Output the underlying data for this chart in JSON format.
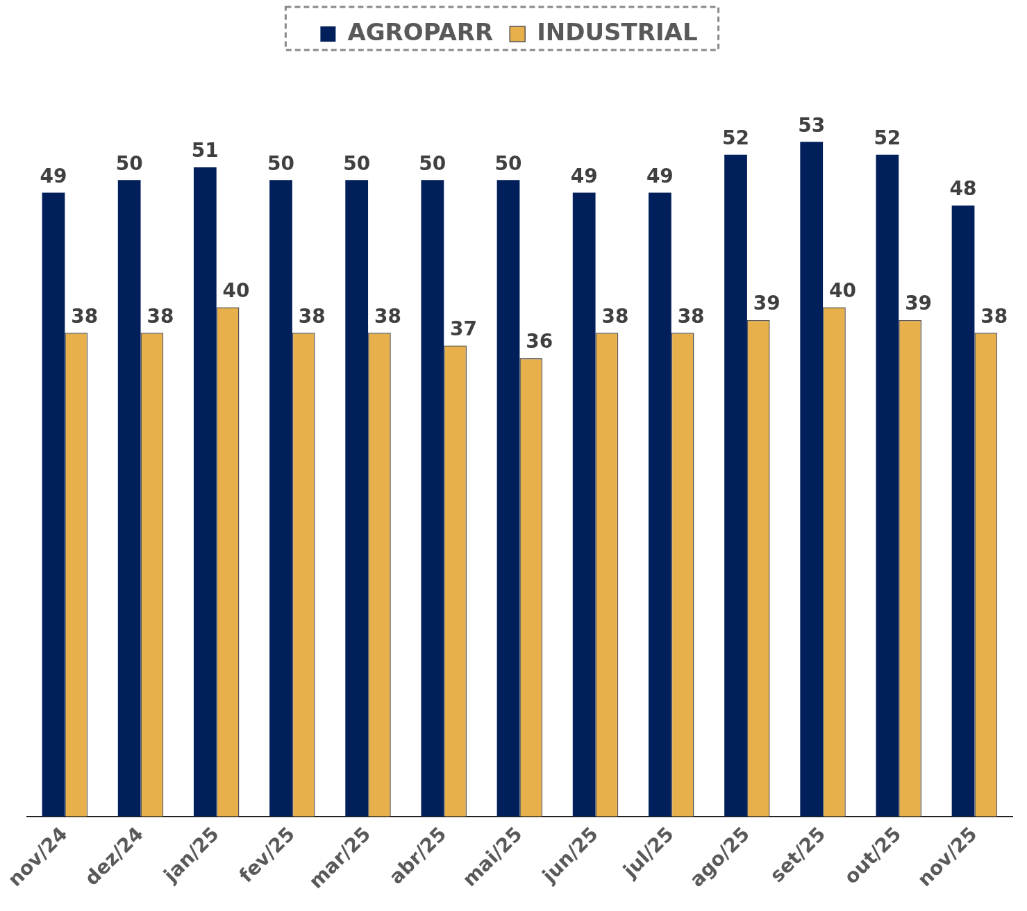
{
  "chart_data": {
    "type": "bar",
    "categories": [
      "nov/24",
      "dez/24",
      "jan/25",
      "fev/25",
      "mar/25",
      "abr/25",
      "mai/25",
      "jun/25",
      "jul/25",
      "ago/25",
      "set/25",
      "out/25",
      "nov/25"
    ],
    "series": [
      {
        "name": "AGROPARR",
        "color": "#001f5b",
        "values": [
          49,
          50,
          51,
          50,
          50,
          50,
          50,
          49,
          49,
          52,
          53,
          52,
          48
        ]
      },
      {
        "name": "INDUSTRIAL",
        "color": "#e8b04a",
        "values": [
          38,
          38,
          40,
          38,
          38,
          37,
          36,
          38,
          38,
          39,
          40,
          39,
          38
        ]
      }
    ],
    "data_labels": true,
    "legend": "top",
    "grid": false
  }
}
